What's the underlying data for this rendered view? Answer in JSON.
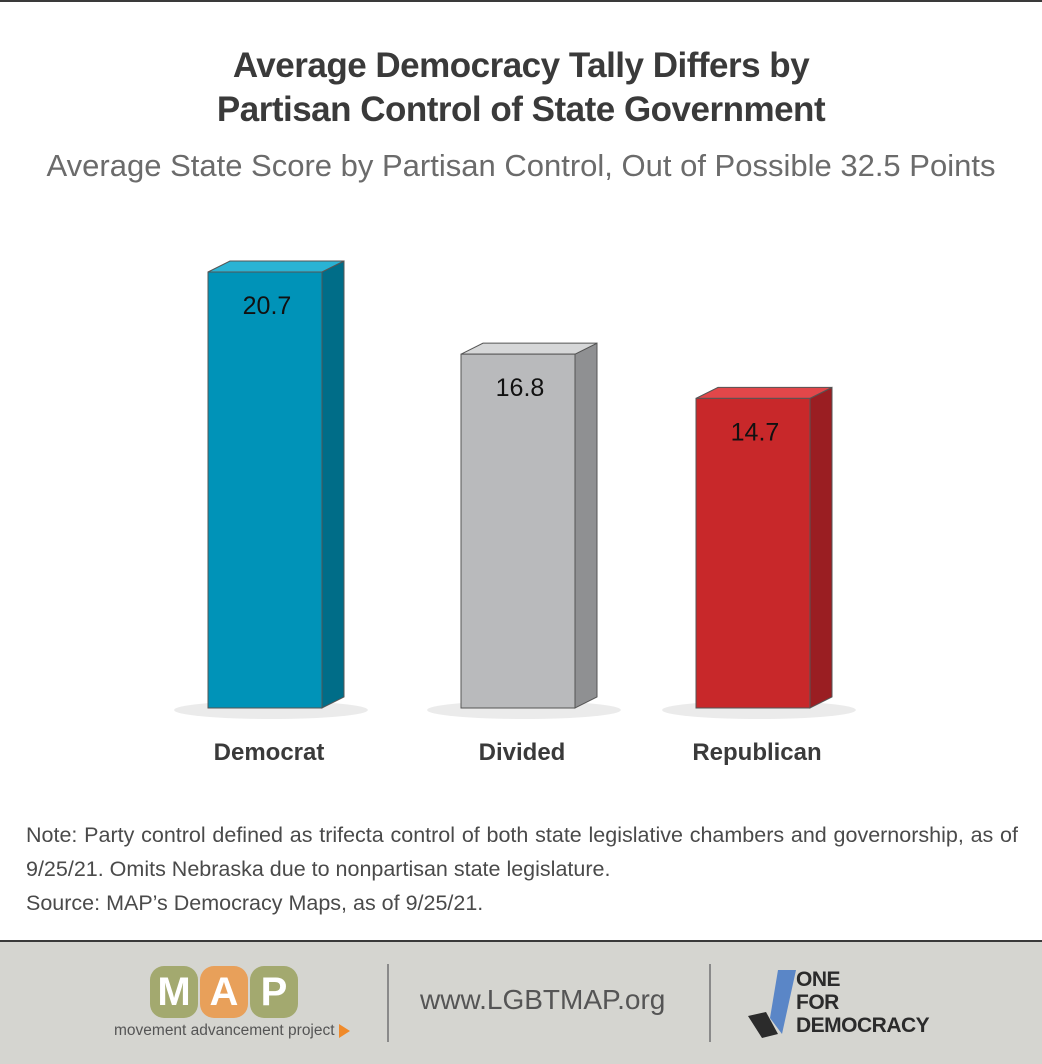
{
  "title_lines": [
    "Average Democracy Tally Differs by",
    "Partisan Control of State Government"
  ],
  "subtitle": "Average State Score by Partisan Control, Out of Possible 32.5 Points",
  "chart_data": {
    "type": "bar",
    "title": "Average Democracy Tally Differs by Partisan Control of State Government",
    "subtitle": "Average State Score by Partisan Control, Out of Possible 32.5 Points",
    "categories": [
      "Democrat",
      "Divided",
      "Republican"
    ],
    "values": [
      20.7,
      16.8,
      14.7
    ],
    "value_labels": [
      "20.7",
      "16.8",
      "14.7"
    ],
    "colors": [
      "#0093b8",
      "#b9babc",
      "#c8282a"
    ],
    "ylim": [
      0,
      20.7
    ],
    "grid": false,
    "legend": "none"
  },
  "note": {
    "line1": "Note: Party control defined as trifecta control of both state legislative chambers and governorship, as of 9/25/21. Omits Nebraska due to nonpartisan state legislature.",
    "line2": "Source: MAP’s Democracy Maps, as of 9/25/21."
  },
  "footer": {
    "map_letters": [
      "M",
      "A",
      "P"
    ],
    "map_tagline": "movement advancement project",
    "url": "www.LGBTMAP.org",
    "ofd_lines": [
      "ONE",
      "FOR",
      "DEMOCRACY"
    ]
  }
}
